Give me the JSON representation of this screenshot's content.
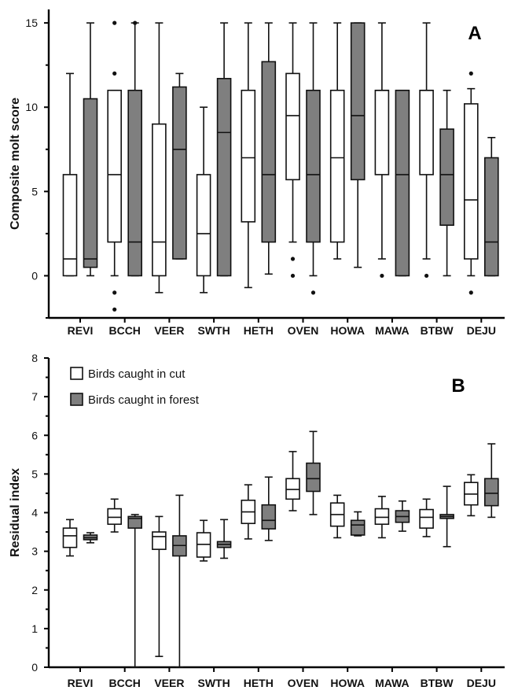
{
  "colors": {
    "cut": "#ffffff",
    "forest": "#7f7f7f",
    "stroke": "#111111"
  },
  "legend": {
    "placement": "top-left of panel B",
    "cut_label": "Birds caught in cut",
    "forest_label": "Birds caught in forest"
  },
  "chart_data": [
    {
      "type": "box",
      "panel": "A",
      "ylabel": "Composite molt score",
      "ylim": [
        -2.5,
        15.8
      ],
      "yticks": [
        0,
        5,
        10,
        15
      ],
      "categories": [
        "REVI",
        "BCCH",
        "VEER",
        "SWTH",
        "HETH",
        "OVEN",
        "HOWA",
        "MAWA",
        "BTBW",
        "DEJU"
      ],
      "series": [
        {
          "name": "Birds caught in cut",
          "color": "#ffffff",
          "boxes": [
            {
              "min": 0,
              "q1": 0,
              "median": 1,
              "q3": 6,
              "max": 12,
              "outliers": []
            },
            {
              "min": 0,
              "q1": 2,
              "median": 6,
              "q3": 11,
              "max": 11,
              "outliers": [
                15,
                12,
                -1,
                -2
              ]
            },
            {
              "min": -1,
              "q1": 0,
              "median": 2,
              "q3": 9,
              "max": 15,
              "outliers": []
            },
            {
              "min": -1,
              "q1": 0,
              "median": 2.5,
              "q3": 6,
              "max": 10,
              "outliers": []
            },
            {
              "min": -0.7,
              "q1": 3.2,
              "median": 7,
              "q3": 11,
              "max": 15,
              "outliers": []
            },
            {
              "min": 2,
              "q1": 5.7,
              "median": 9.5,
              "q3": 12,
              "max": 15,
              "outliers": [
                1,
                0
              ]
            },
            {
              "min": 1,
              "q1": 2,
              "median": 7,
              "q3": 11,
              "max": 15,
              "outliers": []
            },
            {
              "min": 1,
              "q1": 6,
              "median": 11,
              "q3": 11,
              "max": 15,
              "outliers": [
                0
              ]
            },
            {
              "min": 1,
              "q1": 6,
              "median": 11,
              "q3": 11,
              "max": 15,
              "outliers": [
                0
              ]
            },
            {
              "min": 0,
              "q1": 1,
              "median": 4.5,
              "q3": 10.2,
              "max": 11.1,
              "outliers": [
                12,
                -1
              ]
            }
          ]
        },
        {
          "name": "Birds caught in forest",
          "color": "#7f7f7f",
          "boxes": [
            {
              "min": 0,
              "q1": 0.5,
              "median": 1,
              "q3": 10.5,
              "max": 15,
              "outliers": []
            },
            {
              "min": 0,
              "q1": 0,
              "median": 2,
              "q3": 11,
              "max": 15,
              "outliers": [
                15
              ]
            },
            {
              "min": 1,
              "q1": 1,
              "median": 7.5,
              "q3": 11.2,
              "max": 12,
              "outliers": []
            },
            {
              "min": 0,
              "q1": 0,
              "median": 8.5,
              "q3": 11.7,
              "max": 15,
              "outliers": []
            },
            {
              "min": 0.1,
              "q1": 2,
              "median": 6,
              "q3": 12.7,
              "max": 15,
              "outliers": []
            },
            {
              "min": 0,
              "q1": 2,
              "median": 6,
              "q3": 11,
              "max": 15,
              "outliers": [
                -1
              ]
            },
            {
              "min": 0.5,
              "q1": 5.7,
              "median": 9.5,
              "q3": 15,
              "max": 15,
              "outliers": []
            },
            {
              "min": 0,
              "q1": 0,
              "median": 6,
              "q3": 11,
              "max": 11,
              "outliers": []
            },
            {
              "min": 0,
              "q1": 3,
              "median": 6,
              "q3": 8.7,
              "max": 11,
              "outliers": []
            },
            {
              "min": 0,
              "q1": 0,
              "median": 2,
              "q3": 7,
              "max": 8.2,
              "outliers": []
            }
          ]
        }
      ]
    },
    {
      "type": "box",
      "panel": "B",
      "ylabel": "Residual index",
      "ylim": [
        0,
        8
      ],
      "yticks": [
        0,
        1,
        2,
        3,
        4,
        5,
        6,
        7,
        8
      ],
      "categories": [
        "REVI",
        "BCCH",
        "VEER",
        "SWTH",
        "HETH",
        "OVEN",
        "HOWA",
        "MAWA",
        "BTBW",
        "DEJU"
      ],
      "series": [
        {
          "name": "Birds caught in cut",
          "color": "#ffffff",
          "boxes": [
            {
              "min": 2.88,
              "q1": 3.1,
              "median": 3.4,
              "q3": 3.6,
              "max": 3.82,
              "outliers": []
            },
            {
              "min": 3.5,
              "q1": 3.7,
              "median": 3.88,
              "q3": 4.1,
              "max": 4.35,
              "outliers": []
            },
            {
              "min": 0.28,
              "q1": 3.05,
              "median": 3.38,
              "q3": 3.5,
              "max": 3.9,
              "outliers": []
            },
            {
              "min": 2.75,
              "q1": 2.85,
              "median": 3.18,
              "q3": 3.48,
              "max": 3.8,
              "outliers": []
            },
            {
              "min": 3.32,
              "q1": 3.72,
              "median": 4.02,
              "q3": 4.32,
              "max": 4.72,
              "outliers": []
            },
            {
              "min": 4.05,
              "q1": 4.35,
              "median": 4.6,
              "q3": 4.88,
              "max": 5.58,
              "outliers": []
            },
            {
              "min": 3.35,
              "q1": 3.65,
              "median": 3.95,
              "q3": 4.25,
              "max": 4.45,
              "outliers": []
            },
            {
              "min": 3.35,
              "q1": 3.7,
              "median": 3.88,
              "q3": 4.1,
              "max": 4.42,
              "outliers": []
            },
            {
              "min": 3.38,
              "q1": 3.6,
              "median": 3.88,
              "q3": 4.08,
              "max": 4.35,
              "outliers": []
            },
            {
              "min": 3.92,
              "q1": 4.2,
              "median": 4.48,
              "q3": 4.78,
              "max": 4.98,
              "outliers": []
            }
          ]
        },
        {
          "name": "Birds caught in forest",
          "color": "#7f7f7f",
          "boxes": [
            {
              "min": 3.22,
              "q1": 3.3,
              "median": 3.35,
              "q3": 3.42,
              "max": 3.48,
              "outliers": []
            },
            {
              "min": 0,
              "q1": 3.6,
              "median": 3.85,
              "q3": 3.9,
              "max": 3.95,
              "outliers": []
            },
            {
              "min": 0,
              "q1": 2.88,
              "median": 3.15,
              "q3": 3.4,
              "max": 4.45,
              "outliers": []
            },
            {
              "min": 2.82,
              "q1": 3.1,
              "median": 3.18,
              "q3": 3.25,
              "max": 3.82,
              "outliers": []
            },
            {
              "min": 3.28,
              "q1": 3.58,
              "median": 3.8,
              "q3": 4.2,
              "max": 4.92,
              "outliers": []
            },
            {
              "min": 3.95,
              "q1": 4.55,
              "median": 4.88,
              "q3": 5.28,
              "max": 6.1,
              "outliers": []
            },
            {
              "min": 3.4,
              "q1": 3.42,
              "median": 3.68,
              "q3": 3.8,
              "max": 4.02,
              "outliers": []
            },
            {
              "min": 3.52,
              "q1": 3.75,
              "median": 3.9,
              "q3": 4.05,
              "max": 4.3,
              "outliers": []
            },
            {
              "min": 3.12,
              "q1": 3.85,
              "median": 3.9,
              "q3": 3.95,
              "max": 4.68,
              "outliers": []
            },
            {
              "min": 3.88,
              "q1": 4.18,
              "median": 4.5,
              "q3": 4.88,
              "max": 5.78,
              "outliers": []
            }
          ]
        }
      ]
    }
  ]
}
